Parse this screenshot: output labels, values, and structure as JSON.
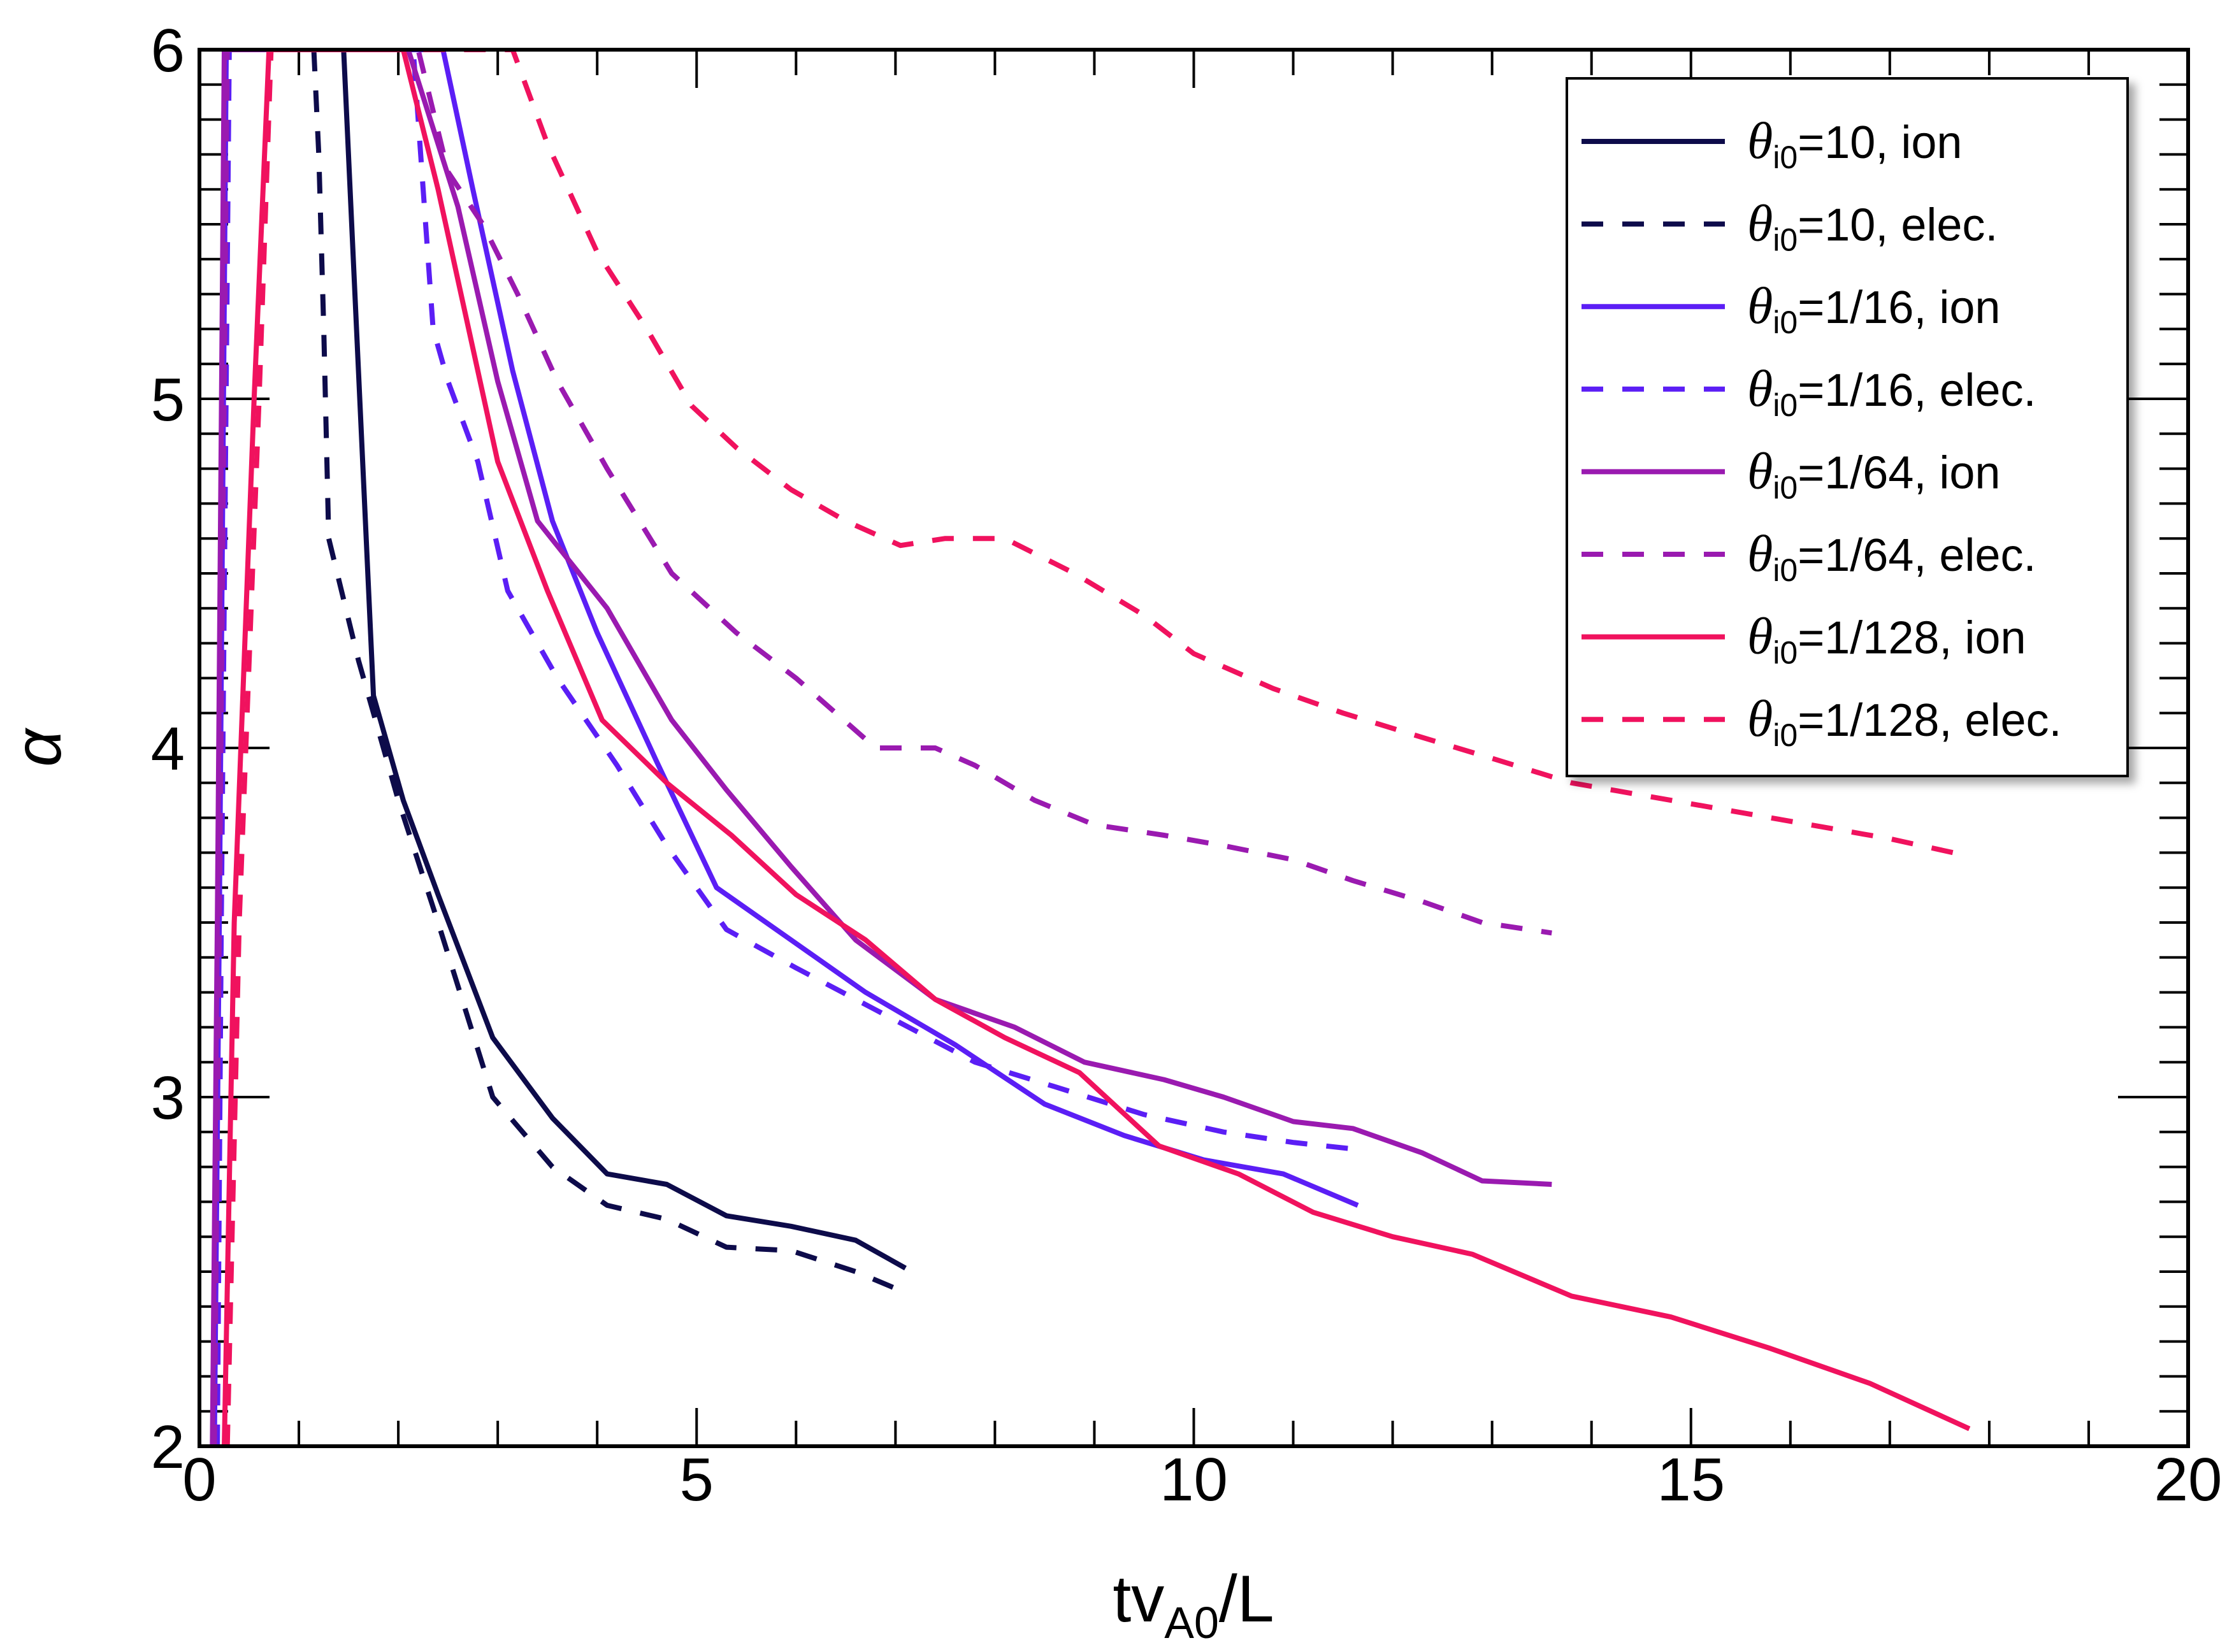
{
  "chart_data": {
    "type": "line",
    "xlabel": {
      "main": "tv",
      "sub": "A0",
      "rest": "/L"
    },
    "ylabel": "α",
    "xlim": [
      0,
      20
    ],
    "ylim": [
      2,
      6
    ],
    "xticks": [
      0,
      5,
      10,
      15,
      20
    ],
    "yticks": [
      2,
      3,
      4,
      5,
      6
    ],
    "xtick_labels": [
      "0",
      "5",
      "10",
      "15",
      "20"
    ],
    "ytick_labels": [
      "2",
      "3",
      "4",
      "5",
      "6"
    ],
    "legend_position": "top-right",
    "legend_prefix": "θ",
    "legend_subscript": "i0",
    "series": [
      {
        "name": "θi0=10, ion",
        "label_eq": "=10, ion",
        "color": "#0d0b4a",
        "dash": false,
        "x": [
          1.45,
          1.75,
          2.05,
          2.4,
          2.95,
          3.55,
          4.1,
          4.7,
          5.3,
          5.95,
          6.6,
          7.1
        ],
        "y": [
          6.0,
          4.15,
          3.85,
          3.58,
          3.17,
          2.94,
          2.78,
          2.75,
          2.66,
          2.63,
          2.59,
          2.51
        ]
      },
      {
        "name": "θi0=10, elec.",
        "label_eq": "=10, elec.",
        "color": "#0d0b4a",
        "dash": true,
        "x": [
          1.15,
          1.2,
          1.25,
          1.3,
          1.6,
          2.0,
          2.4,
          2.95,
          3.55,
          4.1,
          4.7,
          5.3,
          5.95,
          6.6,
          7.1
        ],
        "y": [
          6.0,
          5.7,
          5.2,
          4.6,
          4.25,
          3.85,
          3.5,
          3.0,
          2.8,
          2.69,
          2.65,
          2.57,
          2.56,
          2.5,
          2.44
        ]
      },
      {
        "name": "θi0=1/16, ion",
        "label_eq": "=1/16, ion",
        "color": "#5b1ef5",
        "dash": false,
        "x": [
          0.15,
          0.2,
          0.27,
          2.45,
          2.75,
          3.15,
          3.55,
          4.0,
          4.6,
          5.2,
          5.95,
          6.7,
          7.6,
          8.5,
          9.3,
          10.1,
          10.9,
          11.65
        ],
        "y": [
          2.0,
          3.5,
          6.0,
          6.0,
          5.6,
          5.08,
          4.65,
          4.33,
          3.96,
          3.6,
          3.45,
          3.3,
          3.15,
          2.98,
          2.89,
          2.82,
          2.78,
          2.69
        ]
      },
      {
        "name": "θi0=1/16, elec.",
        "label_eq": "=1/16, elec.",
        "color": "#5b1ef5",
        "dash": true,
        "x": [
          0.18,
          0.22,
          0.3,
          2.15,
          2.25,
          2.35,
          2.5,
          2.8,
          3.1,
          3.6,
          4.2,
          4.7,
          5.3,
          6.0,
          6.8,
          7.8,
          8.6,
          9.5,
          10.3,
          11.0,
          11.65
        ],
        "y": [
          2.0,
          3.5,
          6.0,
          6.0,
          5.6,
          5.2,
          5.05,
          4.82,
          4.45,
          4.2,
          3.95,
          3.72,
          3.48,
          3.37,
          3.25,
          3.1,
          3.03,
          2.95,
          2.9,
          2.87,
          2.85
        ]
      },
      {
        "name": "θi0=1/64, ion",
        "label_eq": "=1/64, ion",
        "color": "#9a1ab0",
        "dash": false,
        "x": [
          0.13,
          0.18,
          0.25,
          2.1,
          2.6,
          3.0,
          3.4,
          4.1,
          4.75,
          5.3,
          5.95,
          6.6,
          7.4,
          8.2,
          8.9,
          9.7,
          10.3,
          11.0,
          11.6,
          12.3,
          12.9,
          13.6
        ],
        "y": [
          2.0,
          3.5,
          6.0,
          6.0,
          5.55,
          5.05,
          4.65,
          4.4,
          4.08,
          3.88,
          3.66,
          3.45,
          3.28,
          3.2,
          3.1,
          3.05,
          3.0,
          2.93,
          2.91,
          2.84,
          2.76,
          2.75
        ]
      },
      {
        "name": "θi0=1/64, elec.",
        "label_eq": "=1/64, elec.",
        "color": "#9a1ab0",
        "dash": true,
        "x": [
          0.15,
          0.2,
          0.28,
          2.2,
          2.5,
          2.85,
          3.2,
          3.6,
          4.1,
          4.75,
          5.4,
          6.0,
          6.8,
          7.4,
          7.8,
          8.4,
          9.0,
          9.7,
          10.3,
          11.0,
          11.6,
          12.3,
          12.9,
          13.6
        ],
        "y": [
          2.0,
          3.5,
          6.0,
          6.0,
          5.65,
          5.5,
          5.3,
          5.05,
          4.8,
          4.5,
          4.33,
          4.2,
          4.0,
          4.0,
          3.95,
          3.85,
          3.78,
          3.75,
          3.72,
          3.68,
          3.62,
          3.56,
          3.5,
          3.47
        ]
      },
      {
        "name": "θi0=1/128, ion",
        "label_eq": "=1/128, ion",
        "color": "#f0125e",
        "dash": false,
        "x": [
          0.25,
          0.35,
          0.55,
          0.7,
          2.05,
          2.4,
          3.0,
          3.5,
          4.05,
          4.7,
          5.35,
          6.0,
          6.7,
          7.4,
          8.1,
          8.85,
          9.65,
          10.45,
          11.2,
          12.0,
          12.8,
          13.8,
          14.8,
          15.8,
          16.8,
          17.8
        ],
        "y": [
          2.0,
          3.5,
          5.0,
          6.0,
          6.0,
          5.6,
          4.82,
          4.45,
          4.08,
          3.9,
          3.75,
          3.58,
          3.45,
          3.28,
          3.17,
          3.07,
          2.86,
          2.78,
          2.67,
          2.6,
          2.55,
          2.43,
          2.37,
          2.28,
          2.18,
          2.05
        ]
      },
      {
        "name": "θi0=1/128, elec.",
        "label_eq": "=1/128, elec.",
        "color": "#f0125e",
        "dash": true,
        "x": [
          0.28,
          0.4,
          0.6,
          0.72,
          3.15,
          3.5,
          4.0,
          4.5,
          4.95,
          5.4,
          5.95,
          6.5,
          7.05,
          7.5,
          8.1,
          8.8,
          9.5,
          10.0,
          10.8,
          11.5,
          12.3,
          13.0,
          13.8,
          14.6,
          15.4,
          16.2,
          17.0,
          17.8
        ],
        "y": [
          2.0,
          3.5,
          5.0,
          6.0,
          6.0,
          5.73,
          5.42,
          5.2,
          4.98,
          4.86,
          4.74,
          4.65,
          4.58,
          4.6,
          4.6,
          4.5,
          4.38,
          4.27,
          4.17,
          4.1,
          4.03,
          3.97,
          3.9,
          3.86,
          3.82,
          3.78,
          3.74,
          3.69
        ]
      }
    ]
  }
}
